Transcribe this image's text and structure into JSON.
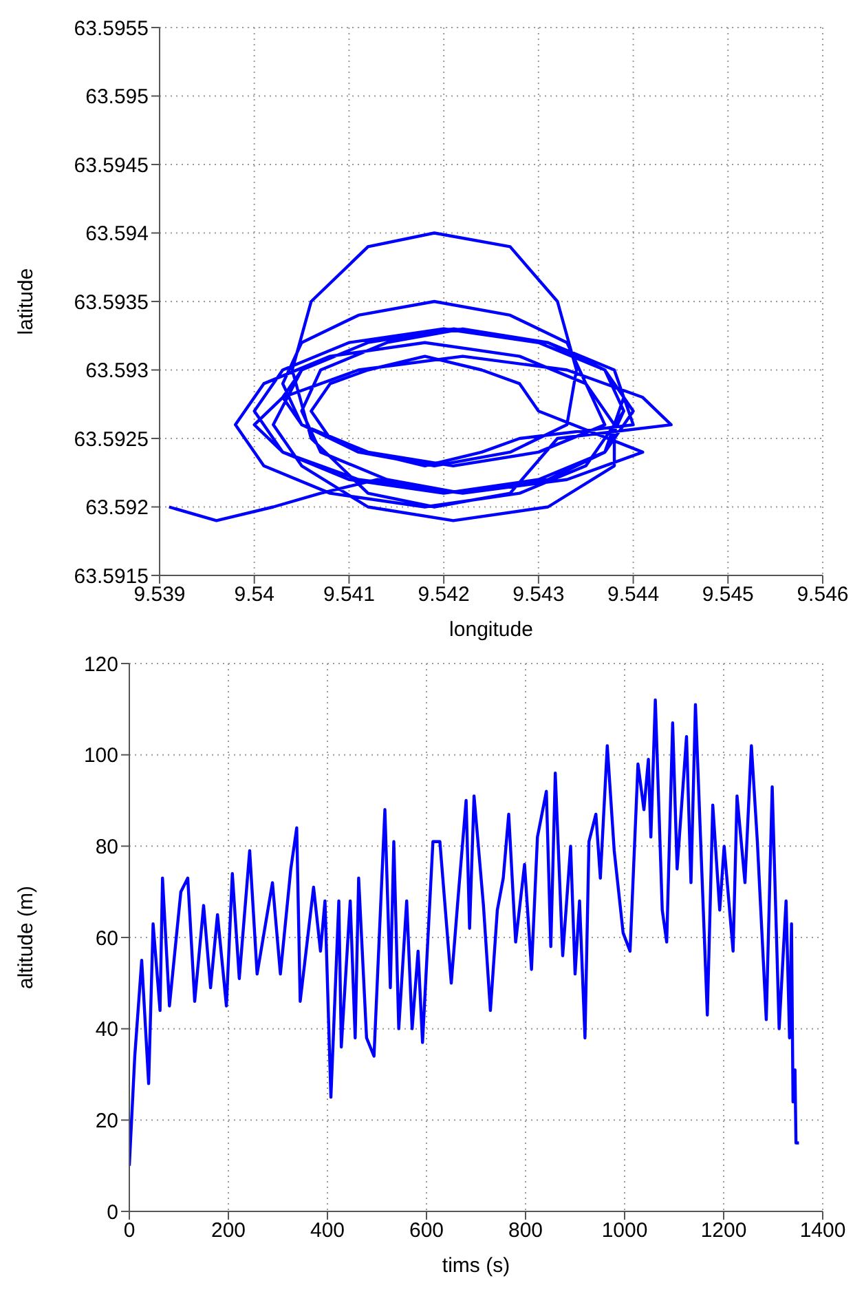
{
  "chart_data": [
    {
      "type": "line",
      "xlabel": "longitude",
      "ylabel": "latitude",
      "color": "#0000ff",
      "grid": true,
      "xlim": [
        9.539,
        9.546
      ],
      "xticks": [
        9.539,
        9.54,
        9.541,
        9.542,
        9.543,
        9.544,
        9.545,
        9.546
      ],
      "ylim": [
        63.5915,
        63.5955
      ],
      "yticks": [
        63.5915,
        63.592,
        63.5925,
        63.593,
        63.5935,
        63.594,
        63.5945,
        63.595,
        63.5955
      ],
      "x": [
        9.5391,
        9.5396,
        9.5402,
        9.5407,
        9.5413,
        9.542,
        9.543,
        9.5437,
        9.544,
        9.5437,
        9.543,
        9.542,
        9.541,
        9.5403,
        9.54,
        9.5403,
        9.541,
        9.542,
        9.543,
        9.5437,
        9.5439,
        9.5437,
        9.543,
        9.5421,
        9.5412,
        9.5405,
        9.5403,
        9.5405,
        9.5412,
        9.5421,
        9.543,
        9.5437,
        9.5435,
        9.5433,
        9.5427,
        9.5419,
        9.5411,
        9.5405,
        9.5403,
        9.5405,
        9.5411,
        9.5419,
        9.5427,
        9.5433,
        9.5434,
        9.5432,
        9.5427,
        9.5419,
        9.5412,
        9.5406,
        9.5404,
        9.5406,
        9.5412,
        9.5419,
        9.5427,
        9.5432,
        9.5444,
        9.5441,
        9.5433,
        9.5422,
        9.5411,
        9.5403,
        9.54,
        9.5403,
        9.5411,
        9.5422,
        9.5433,
        9.5441,
        9.543,
        9.5428,
        9.5424,
        9.5418,
        9.5412,
        9.5408,
        9.5406,
        9.5408,
        9.5412,
        9.5418,
        9.5424,
        9.5428,
        9.544,
        9.5438,
        9.5431,
        9.5421,
        9.5412,
        9.5405,
        9.5402,
        9.5405,
        9.5412,
        9.5421,
        9.5431,
        9.5438,
        9.5438,
        9.5435,
        9.5428,
        9.5418,
        9.5408,
        9.5401,
        9.5398,
        9.5401,
        9.5408,
        9.5418,
        9.5428,
        9.5435,
        9.5439,
        9.5437,
        9.5431,
        9.5422,
        9.5414,
        9.5407,
        9.5405,
        9.5407,
        9.5414,
        9.5422,
        9.5431,
        9.5437,
        9.5439
      ],
      "values": [
        63.592,
        63.5919,
        63.592,
        63.5921,
        63.5922,
        63.5921,
        63.5922,
        63.5924,
        63.5927,
        63.593,
        63.5932,
        63.5933,
        63.5932,
        63.593,
        63.5927,
        63.5924,
        63.5922,
        63.5921,
        63.5922,
        63.5924,
        63.5928,
        63.593,
        63.5932,
        63.5933,
        63.5932,
        63.593,
        63.5928,
        63.5926,
        63.5924,
        63.5923,
        63.5924,
        63.5926,
        63.5929,
        63.5932,
        63.5934,
        63.5935,
        63.5934,
        63.5932,
        63.5929,
        63.5926,
        63.5924,
        63.5923,
        63.5924,
        63.5926,
        63.593,
        63.5935,
        63.5939,
        63.594,
        63.5939,
        63.5935,
        63.593,
        63.5925,
        63.5921,
        63.592,
        63.5921,
        63.5925,
        63.5926,
        63.5928,
        63.593,
        63.5931,
        63.593,
        63.5928,
        63.5926,
        63.5924,
        63.5922,
        63.5921,
        63.5922,
        63.5924,
        63.5927,
        63.5929,
        63.593,
        63.5931,
        63.593,
        63.5929,
        63.5927,
        63.5925,
        63.5924,
        63.5923,
        63.5924,
        63.5925,
        63.5926,
        63.593,
        63.5932,
        63.5933,
        63.5932,
        63.593,
        63.5926,
        63.5923,
        63.592,
        63.5919,
        63.592,
        63.5923,
        63.5926,
        63.5929,
        63.5931,
        63.5932,
        63.5931,
        63.5929,
        63.5926,
        63.5923,
        63.5921,
        63.592,
        63.5921,
        63.5923,
        63.5927,
        63.593,
        63.5932,
        63.5933,
        63.5932,
        63.593,
        63.5927,
        63.5924,
        63.5922,
        63.5921,
        63.5922,
        63.5924,
        63.5927
      ]
    },
    {
      "type": "line",
      "xlabel": "tims (s)",
      "ylabel": "altitude (m)",
      "color": "#0000ff",
      "grid": true,
      "xlim": [
        0,
        1400
      ],
      "xticks": [
        0,
        200,
        400,
        600,
        800,
        1000,
        1200,
        1400
      ],
      "ylim": [
        0,
        120
      ],
      "yticks": [
        0,
        20,
        40,
        60,
        80,
        100,
        120
      ],
      "x": [
        0,
        11,
        25,
        39,
        48,
        62,
        67,
        81,
        104,
        118,
        132,
        150,
        164,
        178,
        196,
        208,
        222,
        243,
        258,
        289,
        305,
        326,
        338,
        345,
        372,
        386,
        395,
        407,
        423,
        428,
        446,
        456,
        463,
        479,
        494,
        516,
        527,
        534,
        544,
        560,
        571,
        583,
        592,
        613,
        627,
        650,
        664,
        680,
        687,
        696,
        715,
        729,
        743,
        755,
        766,
        780,
        798,
        812,
        824,
        842,
        851,
        860,
        875,
        891,
        900,
        909,
        920,
        928,
        942,
        951,
        965,
        979,
        997,
        1011,
        1027,
        1039,
        1048,
        1053,
        1062,
        1076,
        1085,
        1097,
        1106,
        1125,
        1134,
        1143,
        1155,
        1167,
        1178,
        1192,
        1201,
        1219,
        1227,
        1243,
        1256,
        1268,
        1286,
        1298,
        1312,
        1326,
        1333,
        1337,
        1340,
        1344,
        1346,
        1352
      ],
      "values": [
        10,
        34,
        55,
        28,
        63,
        44,
        73,
        45,
        70,
        73,
        46,
        67,
        49,
        65,
        45,
        74,
        51,
        79,
        52,
        72,
        52,
        75,
        84,
        46,
        71,
        57,
        68,
        25,
        68,
        36,
        68,
        38,
        73,
        38,
        34,
        88,
        49,
        81,
        40,
        68,
        40,
        57,
        37,
        81,
        81,
        50,
        69,
        90,
        62,
        91,
        67,
        44,
        66,
        73,
        87,
        59,
        76,
        53,
        82,
        92,
        58,
        96,
        56,
        80,
        52,
        68,
        38,
        81,
        87,
        73,
        102,
        79,
        61,
        57,
        98,
        88,
        99,
        82,
        112,
        66,
        59,
        107,
        75,
        104,
        72,
        111,
        77,
        43,
        89,
        66,
        80,
        57,
        91,
        72,
        102,
        81,
        42,
        93,
        40,
        68,
        38,
        63,
        24,
        31,
        15,
        15
      ]
    }
  ]
}
